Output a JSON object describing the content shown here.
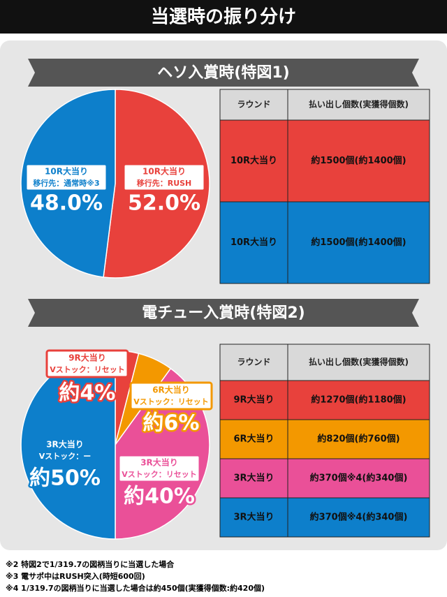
{
  "header": {
    "title": "当選時の振り分け"
  },
  "sections": [
    {
      "title": "ヘソ入賞時(特図1)"
    },
    {
      "title": "電チュー入賞時(特図2)"
    }
  ],
  "chart_data": [
    {
      "type": "pie",
      "categories": [
        "10R大当り",
        "10R大当り"
      ],
      "sublabels": [
        "移行先：RUSH",
        "移行先：通常時※3"
      ],
      "values": [
        52,
        48
      ],
      "value_labels": [
        "52.0%",
        "48.0%"
      ],
      "colors": [
        "#e8413c",
        "#0d7fcb"
      ]
    },
    {
      "type": "pie",
      "categories": [
        "9R大当り",
        "6R大当り",
        "3R大当り",
        "3R大当り"
      ],
      "sublabels": [
        "Vストック：リセット",
        "Vストック：リセット",
        "Vストック：リセット",
        "Vストック：ー"
      ],
      "values": [
        4,
        6,
        40,
        50
      ],
      "value_labels": [
        "約4%",
        "約6%",
        "約40%",
        "約50%"
      ],
      "colors": [
        "#e8413c",
        "#f39800",
        "#ea5098",
        "#0d7fcb"
      ]
    }
  ],
  "tables": [
    {
      "header": [
        "ラウンド",
        "払い出し個数(実獲得個数)"
      ],
      "rows": [
        {
          "color": "#e8413c",
          "cells": [
            "10R大当り",
            "約1500個(約1400個)"
          ]
        },
        {
          "color": "#0d7fcb",
          "cells": [
            "10R大当り",
            "約1500個(約1400個)"
          ]
        }
      ]
    },
    {
      "header": [
        "ラウンド",
        "払い出し個数(実獲得個数)"
      ],
      "rows": [
        {
          "color": "#e8413c",
          "cells": [
            "9R大当り",
            "約1270個(約1180個)"
          ]
        },
        {
          "color": "#f39800",
          "cells": [
            "6R大当り",
            "約820個(約760個)"
          ]
        },
        {
          "color": "#ea5098",
          "cells": [
            "3R大当り",
            "約370個※4(約340個)"
          ]
        },
        {
          "color": "#0d7fcb",
          "cells": [
            "3R大当り",
            "約370個※4(約340個)"
          ]
        }
      ]
    }
  ],
  "footnotes": [
    "※2 特図2で1/319.7の図柄当りに当選した場合",
    "※3 電サポ中はRUSH突入(時短600回)",
    "※4 1/319.7の図柄当りに当選した場合は約450個(実獲得個数:約420個)"
  ]
}
